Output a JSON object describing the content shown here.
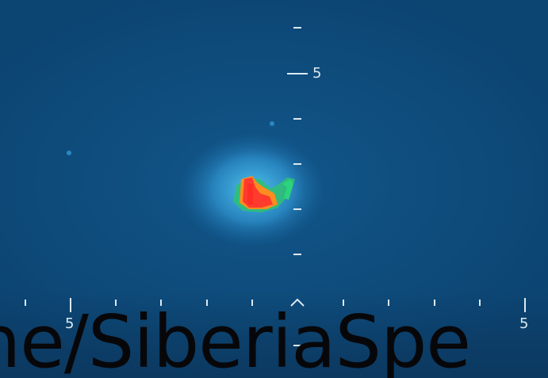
{
  "scene": {
    "description_colors": {
      "background": "#0d4775",
      "halo": "#3aa6d8",
      "hot_core_red": "#ff3b2e",
      "hot_core_orange": "#ff8a1e",
      "hot_core_green": "#38d66a",
      "reticle": "#dbe9f3"
    }
  },
  "reticle": {
    "vertical_label": "5",
    "horizontal_left_label": "5",
    "horizontal_right_label": "5",
    "center_marker_icon": "caret-up-icon"
  },
  "watermark": {
    "text": "ne/SiberiaSpe"
  }
}
